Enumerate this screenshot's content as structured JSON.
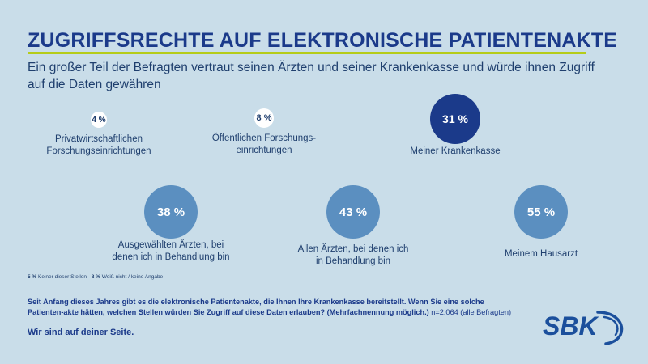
{
  "title": "ZUGRIFFSRECHTE AUF ELEKTRONISCHE PATIENTENAKTE",
  "subtitle": "Ein großer Teil der Befragten vertraut seinen Ärzten und seiner Krankenkasse und würde ihnen Zugriff auf die Daten gewähren",
  "chart_data": {
    "type": "bubble",
    "title": "ZUGRIFFSRECHTE AUF ELEKTRONISCHE PATIENTENAKTE",
    "unit": "%",
    "categories": [
      "Privatwirtschaftlichen Forschungseinrichtungen",
      "Öffentlichen Forschungs-einrichtungen",
      "Meiner Krankenkasse",
      "Ausgewählten Ärzten, bei denen ich in Behandlung bin",
      "Allen Ärzten, bei denen ich in Behandlung bin",
      "Meinem Hausarzt"
    ],
    "values": [
      4,
      8,
      31,
      38,
      43,
      55
    ],
    "value_labels": [
      "4 %",
      "8 %",
      "31 %",
      "38 %",
      "43 %",
      "55 %"
    ],
    "label_lines": [
      [
        "Privatwirtschaftlichen",
        "Forschungseinrichtungen"
      ],
      [
        "Öffentlichen Forschungs-",
        "einrichtungen"
      ],
      [
        "Meiner Krankenkasse"
      ],
      [
        "Ausgewählten Ärzten, bei",
        "denen ich in Behandlung bin"
      ],
      [
        "Allen Ärzten, bei denen ich",
        "in Behandlung bin"
      ],
      [
        "Meinem Hausarzt"
      ]
    ],
    "colors": [
      "#ffffff",
      "#ffffff",
      "#1b3a8a",
      "#5b8fc0",
      "#5b8fc0",
      "#5b8fc0"
    ],
    "text_colors": [
      "#1b3a6b",
      "#1b3a6b",
      "#ffffff",
      "#ffffff",
      "#ffffff",
      "#ffffff"
    ]
  },
  "footnote": {
    "part1_value": "5 %",
    "part1_text": " Keiner dieser Stellen - ",
    "part2_value": "8 %",
    "part2_text": " Weiß nicht / keine Angabe"
  },
  "question": "Seit Anfang dieses Jahres gibt es die elektronische Patientenakte, die Ihnen Ihre Krankenkasse bereitstellt. Wenn Sie eine solche Patienten-akte hätten, welchen Stellen würden Sie Zugriff auf diese Daten erlauben? (Mehrfachnennung möglich.)",
  "sample": " n=2.064 (alle Befragten)",
  "claim": "Wir sind auf deiner Seite.",
  "logo": {
    "text": "SBK",
    "color": "#1b4f9c"
  }
}
